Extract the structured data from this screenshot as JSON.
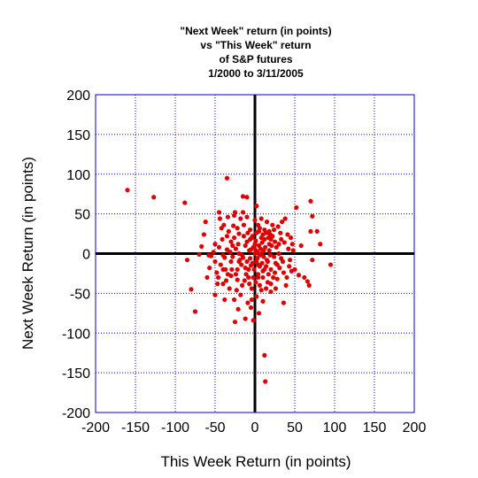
{
  "chart_data": {
    "type": "scatter",
    "title": [
      "\"Next Week\" return (in points)",
      "vs \"This Week\" return",
      "of S&P futures",
      "1/2000 to 3/11/2005"
    ],
    "xlabel": "This Week Return (in points)",
    "ylabel": "Next Week Return (in points)",
    "xlim": [
      -200,
      200
    ],
    "ylim": [
      -200,
      200
    ],
    "xticks": [
      -200,
      -150,
      -100,
      -50,
      0,
      50,
      100,
      150,
      200
    ],
    "yticks": [
      -200,
      -150,
      -100,
      -50,
      0,
      50,
      100,
      150,
      200
    ],
    "grid": true,
    "legend": "none",
    "point_color": "#dd0000",
    "grid_color": "#0000cc",
    "frame_color": "#0000cc",
    "series": [
      {
        "points": [
          [
            -160,
            80
          ],
          [
            -127,
            71
          ],
          [
            -88,
            64
          ],
          [
            -62,
            40
          ],
          [
            -45,
            52
          ],
          [
            -35,
            95
          ],
          [
            -25,
            52
          ],
          [
            -15,
            72
          ],
          [
            -10,
            71
          ],
          [
            -3,
            22
          ],
          [
            2,
            60
          ],
          [
            38,
            44
          ],
          [
            52,
            58
          ],
          [
            70,
            66
          ],
          [
            72,
            47
          ],
          [
            78,
            28
          ],
          [
            82,
            12
          ],
          [
            70,
            28
          ],
          [
            95,
            -14
          ],
          [
            72,
            -8
          ],
          [
            62,
            -30
          ],
          [
            66,
            -35
          ],
          [
            68,
            -40
          ],
          [
            55,
            -27
          ],
          [
            36,
            -62
          ],
          [
            20,
            -48
          ],
          [
            12,
            -128
          ],
          [
            13,
            -161
          ],
          [
            5,
            -75
          ],
          [
            -12,
            -82
          ],
          [
            -25,
            -86
          ],
          [
            -50,
            -52
          ],
          [
            -75,
            -73
          ],
          [
            -80,
            -45
          ],
          [
            -85,
            -8
          ],
          [
            -70,
            -1
          ],
          [
            -67,
            9
          ],
          [
            -55,
            -3
          ],
          [
            -50,
            -10
          ],
          [
            -40,
            -20
          ],
          [
            -40,
            -38
          ],
          [
            -38,
            -58
          ],
          [
            -30,
            -28
          ],
          [
            -22,
            -33
          ],
          [
            -20,
            25
          ],
          [
            -30,
            15
          ],
          [
            -27,
            35
          ],
          [
            -35,
            22
          ],
          [
            -35,
            5
          ],
          [
            -20,
            -10
          ],
          [
            -15,
            -5
          ],
          [
            -10,
            15
          ],
          [
            -8,
            -20
          ],
          [
            -5,
            5
          ],
          [
            -5,
            -15
          ],
          [
            0,
            0
          ],
          [
            3,
            -6
          ],
          [
            5,
            10
          ],
          [
            8,
            20
          ],
          [
            10,
            -22
          ],
          [
            12,
            30
          ],
          [
            15,
            -8
          ],
          [
            18,
            4
          ],
          [
            20,
            -20
          ],
          [
            25,
            15
          ],
          [
            30,
            0
          ],
          [
            35,
            -10
          ],
          [
            40,
            -30
          ],
          [
            45,
            20
          ],
          [
            -45,
            8
          ],
          [
            -50,
            12
          ],
          [
            -48,
            -24
          ],
          [
            -38,
            -5
          ],
          [
            -2,
            -30
          ],
          [
            -4,
            -44
          ],
          [
            2,
            -54
          ],
          [
            6,
            -40
          ],
          [
            10,
            -30
          ],
          [
            14,
            -16
          ],
          [
            16,
            -36
          ],
          [
            22,
            36
          ],
          [
            28,
            -14
          ],
          [
            32,
            26
          ],
          [
            34,
            40
          ],
          [
            42,
            6
          ],
          [
            46,
            -22
          ],
          [
            -18,
            44
          ],
          [
            -14,
            36
          ],
          [
            -12,
            10
          ],
          [
            -6,
            30
          ],
          [
            4,
            36
          ],
          [
            8,
            44
          ],
          [
            12,
            18
          ],
          [
            18,
            28
          ],
          [
            -32,
            -44
          ],
          [
            -26,
            -58
          ],
          [
            -22,
            -20
          ],
          [
            -16,
            -40
          ],
          [
            -8,
            -30
          ],
          [
            -2,
            8
          ],
          [
            1,
            16
          ],
          [
            6,
            -16
          ],
          [
            9,
            -12
          ],
          [
            24,
            -4
          ],
          [
            27,
            8
          ],
          [
            48,
            4
          ],
          [
            -42,
            32
          ],
          [
            -34,
            46
          ],
          [
            -28,
            -4
          ],
          [
            -24,
            6
          ],
          [
            -19,
            -8
          ],
          [
            -11,
            -26
          ],
          [
            -7,
            4
          ],
          [
            -3,
            -12
          ],
          [
            3,
            2
          ],
          [
            7,
            6
          ],
          [
            11,
            -4
          ],
          [
            13,
            8
          ],
          [
            17,
            -26
          ],
          [
            21,
            10
          ],
          [
            23,
            -30
          ],
          [
            26,
            -44
          ],
          [
            29,
            34
          ],
          [
            31,
            -18
          ],
          [
            33,
            -6
          ],
          [
            37,
            14
          ],
          [
            39,
            -40
          ],
          [
            41,
            24
          ],
          [
            44,
            -8
          ],
          [
            47,
            12
          ],
          [
            -46,
            -30
          ],
          [
            -43,
            -14
          ],
          [
            -41,
            18
          ],
          [
            -36,
            -34
          ],
          [
            -33,
            28
          ],
          [
            -31,
            2
          ],
          [
            -29,
            -20
          ],
          [
            -26,
            20
          ],
          [
            -23,
            -46
          ],
          [
            -21,
            12
          ],
          [
            -17,
            -14
          ],
          [
            -13,
            -34
          ],
          [
            -9,
            26
          ],
          [
            -6,
            -6
          ],
          [
            -1,
            -20
          ],
          [
            2,
            26
          ],
          [
            4,
            -26
          ],
          [
            9,
            14
          ],
          [
            14,
            -44
          ],
          [
            19,
            -2
          ],
          [
            22,
            22
          ],
          [
            -18,
            -52
          ],
          [
            -9,
            -62
          ],
          [
            -4,
            -58
          ],
          [
            4,
            -30
          ],
          [
            8,
            -46
          ],
          [
            15,
            40
          ],
          [
            -44,
            44
          ],
          [
            -52,
            2
          ],
          [
            -57,
            -18
          ],
          [
            -60,
            -30
          ],
          [
            -64,
            24
          ],
          [
            -37,
            -20
          ],
          [
            -24,
            -26
          ],
          [
            -14,
            22
          ],
          [
            -7,
            -38
          ],
          [
            1,
            -36
          ],
          [
            5,
            28
          ],
          [
            11,
            4
          ],
          [
            16,
            -10
          ],
          [
            20,
            -38
          ],
          [
            25,
            -24
          ],
          [
            30,
            12
          ],
          [
            -30,
            -10
          ],
          [
            -20,
            0
          ],
          [
            -10,
            -10
          ],
          [
            0,
            12
          ],
          [
            10,
            24
          ],
          [
            20,
            18
          ],
          [
            26,
            -12
          ],
          [
            -12,
            -18
          ],
          [
            -6,
            18
          ],
          [
            6,
            -2
          ],
          [
            12,
            -20
          ],
          [
            18,
            12
          ],
          [
            24,
            30
          ],
          [
            -40,
            -2
          ],
          [
            -34,
            -26
          ],
          [
            -28,
            10
          ],
          [
            -22,
            32
          ],
          [
            -16,
            -2
          ],
          [
            -4,
            20
          ],
          [
            2,
            -10
          ],
          [
            8,
            0
          ],
          [
            14,
            26
          ],
          [
            17,
            20
          ],
          [
            28,
            -32
          ],
          [
            36,
            -24
          ],
          [
            -5,
            -68
          ],
          [
            -2,
            -84
          ],
          [
            4,
            -14
          ],
          [
            -58,
            -2
          ],
          [
            -47,
            -38
          ],
          [
            -39,
            36
          ],
          [
            -26,
            48
          ],
          [
            -10,
            46
          ],
          [
            0,
            42
          ],
          [
            6,
            32
          ],
          [
            19,
            24
          ],
          [
            33,
            18
          ],
          [
            43,
            -16
          ],
          [
            50,
            -20
          ],
          [
            58,
            10
          ],
          [
            -15,
            52
          ],
          [
            -21,
            -70
          ],
          [
            10,
            -60
          ],
          [
            1,
            4
          ]
        ]
      }
    ]
  }
}
